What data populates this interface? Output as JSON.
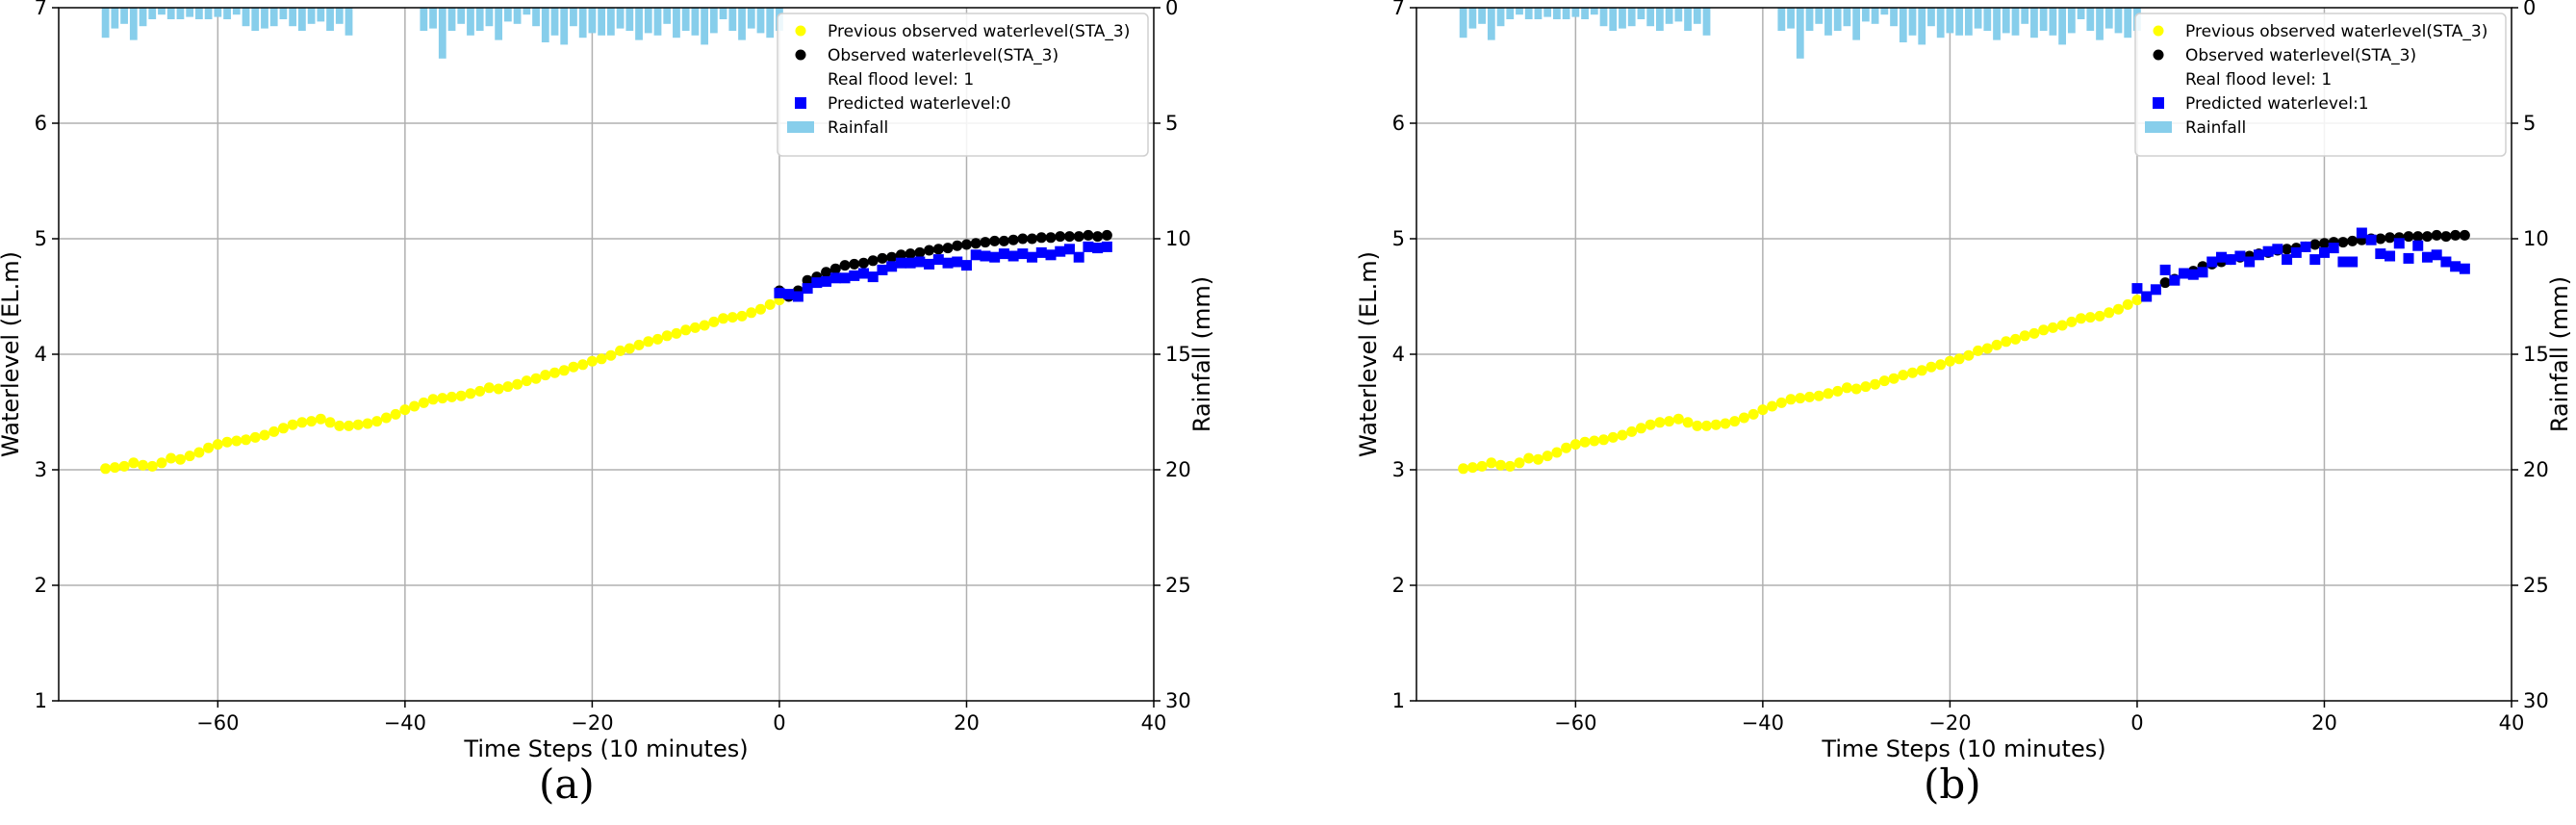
{
  "colors": {
    "previous_observed": "#ffff00",
    "observed": "#000000",
    "predicted": "#0000ff",
    "rainfall": "#87ceeb",
    "grid": "#b0b0b0"
  },
  "markers": {
    "previous_observed": "circle",
    "observed": "circle",
    "predicted": "square"
  },
  "chart_data": [
    {
      "type": "scatter",
      "caption": "(a)",
      "xlabel": "Time Steps (10 minutes)",
      "ylabel": "Waterlevel (EL.m)",
      "ylabel_right": "Rainfall (mm)",
      "xlim": [
        -77,
        40
      ],
      "ylim": [
        1,
        7
      ],
      "ylim_right": [
        30,
        0
      ],
      "xticks": [
        -60,
        -40,
        -20,
        0,
        20,
        40
      ],
      "yticks": [
        1,
        2,
        3,
        4,
        5,
        6,
        7
      ],
      "yticks_right": [
        0,
        5,
        10,
        15,
        20,
        25,
        30
      ],
      "grid": true,
      "legend_position": "top-right",
      "legend": [
        {
          "label": "Previous observed waterlevel(STA_3)",
          "kind": "previous_observed"
        },
        {
          "label": "Observed waterlevel(STA_3)",
          "kind": "observed"
        },
        {
          "label": "Real flood level: 1",
          "kind": "none"
        },
        {
          "label": "Predicted waterlevel:0",
          "kind": "predicted"
        },
        {
          "label": "Rainfall",
          "kind": "rainfall"
        }
      ],
      "series": [
        {
          "name": "Previous observed waterlevel(STA_3)",
          "kind": "previous_observed",
          "x": [
            -72,
            -71,
            -70,
            -69,
            -68,
            -67,
            -66,
            -65,
            -64,
            -63,
            -62,
            -61,
            -60,
            -59,
            -58,
            -57,
            -56,
            -55,
            -54,
            -53,
            -52,
            -51,
            -50,
            -49,
            -48,
            -47,
            -46,
            -45,
            -44,
            -43,
            -42,
            -41,
            -40,
            -39,
            -38,
            -37,
            -36,
            -35,
            -34,
            -33,
            -32,
            -31,
            -30,
            -29,
            -28,
            -27,
            -26,
            -25,
            -24,
            -23,
            -22,
            -21,
            -20,
            -19,
            -18,
            -17,
            -16,
            -15,
            -14,
            -13,
            -12,
            -11,
            -10,
            -9,
            -8,
            -7,
            -6,
            -5,
            -4,
            -3,
            -2,
            -1,
            0
          ],
          "y": [
            3.01,
            3.02,
            3.03,
            3.06,
            3.04,
            3.03,
            3.06,
            3.1,
            3.09,
            3.12,
            3.15,
            3.19,
            3.22,
            3.24,
            3.25,
            3.26,
            3.28,
            3.3,
            3.33,
            3.36,
            3.39,
            3.41,
            3.42,
            3.44,
            3.41,
            3.38,
            3.38,
            3.39,
            3.4,
            3.42,
            3.45,
            3.48,
            3.52,
            3.55,
            3.58,
            3.61,
            3.62,
            3.63,
            3.64,
            3.66,
            3.68,
            3.71,
            3.7,
            3.72,
            3.74,
            3.77,
            3.79,
            3.82,
            3.84,
            3.86,
            3.89,
            3.91,
            3.94,
            3.96,
            3.99,
            4.03,
            4.05,
            4.08,
            4.11,
            4.13,
            4.16,
            4.18,
            4.21,
            4.23,
            4.25,
            4.28,
            4.31,
            4.32,
            4.33,
            4.36,
            4.39,
            4.43,
            4.47
          ]
        },
        {
          "name": "Observed waterlevel(STA_3)",
          "kind": "observed",
          "x": [
            0,
            1,
            2,
            3,
            4,
            5,
            6,
            7,
            8,
            9,
            10,
            11,
            12,
            13,
            14,
            15,
            16,
            17,
            18,
            19,
            20,
            21,
            22,
            23,
            24,
            25,
            26,
            27,
            28,
            29,
            30,
            31,
            32,
            33,
            34,
            35
          ],
          "y": [
            4.55,
            4.5,
            4.55,
            4.64,
            4.67,
            4.71,
            4.74,
            4.77,
            4.78,
            4.79,
            4.81,
            4.83,
            4.84,
            4.86,
            4.87,
            4.88,
            4.9,
            4.91,
            4.92,
            4.94,
            4.95,
            4.96,
            4.97,
            4.98,
            4.98,
            4.99,
            5.0,
            5.0,
            5.01,
            5.01,
            5.02,
            5.02,
            5.02,
            5.03,
            5.02,
            5.03
          ]
        },
        {
          "name": "Predicted waterlevel:0",
          "kind": "predicted",
          "x": [
            0,
            1,
            2,
            3,
            4,
            5,
            6,
            7,
            8,
            9,
            10,
            11,
            12,
            13,
            14,
            15,
            16,
            17,
            18,
            19,
            20,
            21,
            22,
            23,
            24,
            25,
            26,
            27,
            28,
            29,
            30,
            31,
            32,
            33,
            34,
            35
          ],
          "y": [
            4.53,
            4.52,
            4.5,
            4.57,
            4.62,
            4.63,
            4.66,
            4.66,
            4.68,
            4.7,
            4.67,
            4.73,
            4.76,
            4.79,
            4.79,
            4.8,
            4.78,
            4.82,
            4.79,
            4.8,
            4.77,
            4.86,
            4.85,
            4.84,
            4.87,
            4.85,
            4.87,
            4.84,
            4.88,
            4.86,
            4.89,
            4.91,
            4.84,
            4.93,
            4.92,
            4.93
          ]
        }
      ],
      "rainfall": {
        "name": "Rainfall",
        "x": [
          -72,
          -71,
          -70,
          -69,
          -68,
          -67,
          -66,
          -65,
          -64,
          -63,
          -62,
          -61,
          -60,
          -59,
          -58,
          -57,
          -56,
          -55,
          -54,
          -53,
          -52,
          -51,
          -50,
          -49,
          -48,
          -47,
          -46,
          -45,
          -44,
          -43,
          -42,
          -41,
          -40,
          -39,
          -38,
          -37,
          -36,
          -35,
          -34,
          -33,
          -32,
          -31,
          -30,
          -29,
          -28,
          -27,
          -26,
          -25,
          -24,
          -23,
          -22,
          -21,
          -20,
          -19,
          -18,
          -17,
          -16,
          -15,
          -14,
          -13,
          -12,
          -11,
          -10,
          -9,
          -8,
          -7,
          -6,
          -5,
          -4,
          -3,
          -2,
          -1,
          0
        ],
        "values": [
          1.3,
          0.9,
          0.7,
          1.4,
          0.8,
          0.5,
          0.3,
          0.5,
          0.5,
          0.4,
          0.5,
          0.5,
          0.4,
          0.5,
          0.3,
          0.8,
          1.0,
          0.9,
          0.8,
          0.5,
          0.8,
          1.0,
          0.7,
          0.6,
          1.0,
          0.7,
          1.2,
          0,
          0,
          0,
          0,
          0,
          0,
          0,
          1.0,
          0.9,
          2.2,
          1.0,
          0.7,
          1.2,
          1.0,
          0.8,
          1.4,
          0.6,
          0.7,
          0.3,
          0.8,
          1.5,
          1.2,
          1.6,
          0.8,
          1.3,
          1.1,
          1.2,
          1.2,
          0.9,
          1.0,
          1.4,
          1.1,
          1.2,
          0.7,
          1.3,
          1.0,
          1.2,
          1.6,
          1.1,
          0.5,
          1.0,
          1.4,
          0.9,
          1.1,
          1.3,
          1.0
        ]
      }
    },
    {
      "type": "scatter",
      "caption": "(b)",
      "xlabel": "Time Steps (10 minutes)",
      "ylabel": "Waterlevel (EL.m)",
      "ylabel_right": "Rainfall (mm)",
      "xlim": [
        -77,
        40
      ],
      "ylim": [
        1,
        7
      ],
      "ylim_right": [
        30,
        0
      ],
      "xticks": [
        -60,
        -40,
        -20,
        0,
        20,
        40
      ],
      "yticks": [
        1,
        2,
        3,
        4,
        5,
        6,
        7
      ],
      "yticks_right": [
        0,
        5,
        10,
        15,
        20,
        25,
        30
      ],
      "grid": true,
      "legend_position": "top-right",
      "legend": [
        {
          "label": "Previous observed waterlevel(STA_3)",
          "kind": "previous_observed"
        },
        {
          "label": "Observed waterlevel(STA_3)",
          "kind": "observed"
        },
        {
          "label": "Real flood level: 1",
          "kind": "none"
        },
        {
          "label": "Predicted waterlevel:1",
          "kind": "predicted"
        },
        {
          "label": "Rainfall",
          "kind": "rainfall"
        }
      ],
      "series": [
        {
          "name": "Previous observed waterlevel(STA_3)",
          "kind": "previous_observed",
          "x": [
            -72,
            -71,
            -70,
            -69,
            -68,
            -67,
            -66,
            -65,
            -64,
            -63,
            -62,
            -61,
            -60,
            -59,
            -58,
            -57,
            -56,
            -55,
            -54,
            -53,
            -52,
            -51,
            -50,
            -49,
            -48,
            -47,
            -46,
            -45,
            -44,
            -43,
            -42,
            -41,
            -40,
            -39,
            -38,
            -37,
            -36,
            -35,
            -34,
            -33,
            -32,
            -31,
            -30,
            -29,
            -28,
            -27,
            -26,
            -25,
            -24,
            -23,
            -22,
            -21,
            -20,
            -19,
            -18,
            -17,
            -16,
            -15,
            -14,
            -13,
            -12,
            -11,
            -10,
            -9,
            -8,
            -7,
            -6,
            -5,
            -4,
            -3,
            -2,
            -1,
            0
          ],
          "y": [
            3.01,
            3.02,
            3.03,
            3.06,
            3.04,
            3.03,
            3.06,
            3.1,
            3.09,
            3.12,
            3.15,
            3.19,
            3.22,
            3.24,
            3.25,
            3.26,
            3.28,
            3.3,
            3.33,
            3.36,
            3.39,
            3.41,
            3.42,
            3.44,
            3.41,
            3.38,
            3.38,
            3.39,
            3.4,
            3.42,
            3.45,
            3.48,
            3.52,
            3.55,
            3.58,
            3.61,
            3.62,
            3.63,
            3.64,
            3.66,
            3.68,
            3.71,
            3.7,
            3.72,
            3.74,
            3.77,
            3.79,
            3.82,
            3.84,
            3.86,
            3.89,
            3.91,
            3.94,
            3.96,
            3.99,
            4.03,
            4.05,
            4.08,
            4.11,
            4.13,
            4.16,
            4.18,
            4.21,
            4.23,
            4.25,
            4.28,
            4.31,
            4.32,
            4.33,
            4.36,
            4.39,
            4.43,
            4.47
          ]
        },
        {
          "name": "Observed waterlevel(STA_3)",
          "kind": "observed",
          "x": [
            3,
            4,
            5,
            6,
            7,
            8,
            9,
            10,
            11,
            12,
            13,
            14,
            15,
            16,
            17,
            18,
            19,
            20,
            21,
            22,
            23,
            24,
            25,
            26,
            27,
            28,
            29,
            30,
            31,
            32,
            33,
            34,
            35
          ],
          "y": [
            4.62,
            4.65,
            4.7,
            4.72,
            4.76,
            4.78,
            4.8,
            4.82,
            4.84,
            4.85,
            4.87,
            4.88,
            4.9,
            4.91,
            4.92,
            4.93,
            4.95,
            4.96,
            4.97,
            4.97,
            4.98,
            4.99,
            5.0,
            5.0,
            5.01,
            5.01,
            5.02,
            5.02,
            5.02,
            5.03,
            5.02,
            5.03,
            5.03
          ]
        },
        {
          "name": "Predicted waterlevel:1",
          "kind": "predicted",
          "x": [
            0,
            1,
            2,
            3,
            4,
            5,
            6,
            7,
            8,
            9,
            10,
            11,
            12,
            13,
            14,
            15,
            16,
            17,
            18,
            19,
            20,
            21,
            22,
            23,
            24,
            25,
            26,
            27,
            28,
            29,
            30,
            31,
            32,
            33,
            34,
            35
          ],
          "y": [
            4.57,
            4.5,
            4.56,
            4.73,
            4.64,
            4.7,
            4.69,
            4.71,
            4.8,
            4.84,
            4.82,
            4.85,
            4.8,
            4.86,
            4.89,
            4.91,
            4.82,
            4.88,
            4.93,
            4.82,
            4.88,
            4.92,
            4.8,
            4.8,
            5.05,
            4.99,
            4.87,
            4.85,
            4.96,
            4.83,
            4.94,
            4.84,
            4.86,
            4.8,
            4.76,
            4.74
          ]
        }
      ],
      "rainfall": {
        "name": "Rainfall",
        "x": [
          -72,
          -71,
          -70,
          -69,
          -68,
          -67,
          -66,
          -65,
          -64,
          -63,
          -62,
          -61,
          -60,
          -59,
          -58,
          -57,
          -56,
          -55,
          -54,
          -53,
          -52,
          -51,
          -50,
          -49,
          -48,
          -47,
          -46,
          -45,
          -44,
          -43,
          -42,
          -41,
          -40,
          -39,
          -38,
          -37,
          -36,
          -35,
          -34,
          -33,
          -32,
          -31,
          -30,
          -29,
          -28,
          -27,
          -26,
          -25,
          -24,
          -23,
          -22,
          -21,
          -20,
          -19,
          -18,
          -17,
          -16,
          -15,
          -14,
          -13,
          -12,
          -11,
          -10,
          -9,
          -8,
          -7,
          -6,
          -5,
          -4,
          -3,
          -2,
          -1,
          0
        ],
        "values": [
          1.3,
          0.9,
          0.7,
          1.4,
          0.8,
          0.5,
          0.3,
          0.5,
          0.5,
          0.4,
          0.5,
          0.5,
          0.4,
          0.5,
          0.3,
          0.8,
          1.0,
          0.9,
          0.8,
          0.5,
          0.8,
          1.0,
          0.7,
          0.6,
          1.0,
          0.7,
          1.2,
          0,
          0,
          0,
          0,
          0,
          0,
          0,
          1.0,
          0.9,
          2.2,
          1.0,
          0.7,
          1.2,
          1.0,
          0.8,
          1.4,
          0.6,
          0.7,
          0.3,
          0.8,
          1.5,
          1.2,
          1.6,
          0.8,
          1.3,
          1.1,
          1.2,
          1.2,
          0.9,
          1.0,
          1.4,
          1.1,
          1.2,
          0.7,
          1.3,
          1.0,
          1.2,
          1.6,
          1.1,
          0.5,
          1.0,
          1.4,
          0.9,
          1.1,
          1.3,
          1.0
        ]
      }
    }
  ]
}
